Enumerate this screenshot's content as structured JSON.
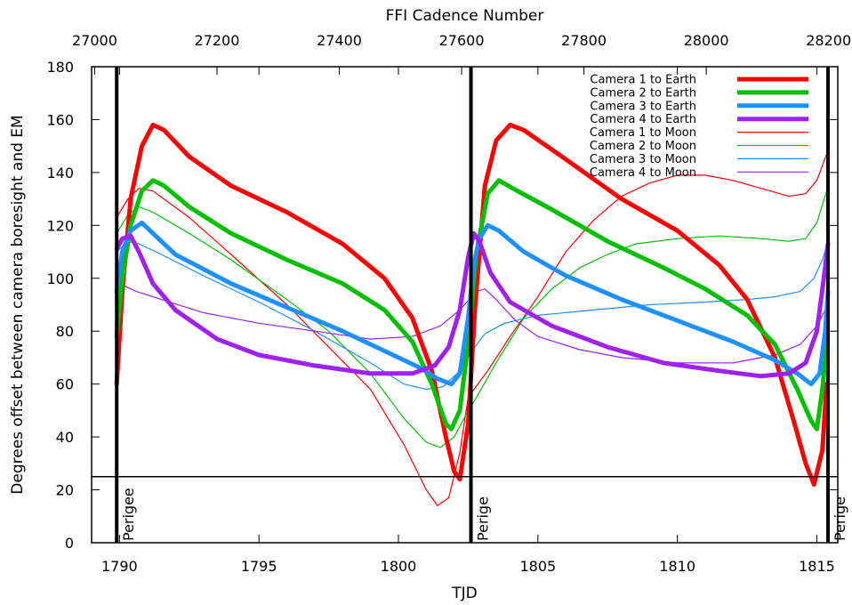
{
  "chart_data": {
    "type": "line",
    "xlabel": "TJD",
    "ylabel": "Degrees offset between camera boresight and EM",
    "x2label": "FFI Cadence Number",
    "xlim": [
      1789,
      1815.75
    ],
    "ylim": [
      0,
      180
    ],
    "x2lim": [
      26995,
      28215
    ],
    "x_ticks": [
      1790,
      1795,
      1800,
      1805,
      1810,
      1815
    ],
    "y_ticks": [
      0,
      20,
      40,
      60,
      80,
      100,
      120,
      140,
      160,
      180
    ],
    "x2_ticks": [
      27000,
      27200,
      27400,
      27600,
      27800,
      28000,
      28200
    ],
    "grid": false,
    "legend_position": "top-right",
    "horizontal_lines": [
      {
        "y": 25
      }
    ],
    "vertical_markers": [
      {
        "x": 1789.9,
        "label": "Perigee"
      },
      {
        "x": 1802.6,
        "label": "Perige"
      },
      {
        "x": 1815.4,
        "label": "Perige"
      }
    ],
    "series": [
      {
        "name": "Camera 1 to Earth",
        "color": "#ff0000",
        "weight": "thick",
        "points": [
          [
            1789.9,
            60
          ],
          [
            1790.1,
            95
          ],
          [
            1790.4,
            130
          ],
          [
            1790.8,
            150
          ],
          [
            1791.2,
            158
          ],
          [
            1791.6,
            156
          ],
          [
            1792.5,
            146
          ],
          [
            1794,
            135
          ],
          [
            1796,
            125
          ],
          [
            1798,
            113
          ],
          [
            1799.5,
            100
          ],
          [
            1800.5,
            85
          ],
          [
            1801.2,
            65
          ],
          [
            1801.7,
            40
          ],
          [
            1802.0,
            27
          ],
          [
            1802.2,
            24
          ],
          [
            1802.5,
            45
          ],
          [
            1802.75,
            90
          ],
          [
            1803.1,
            135
          ],
          [
            1803.5,
            152
          ],
          [
            1804.0,
            158
          ],
          [
            1804.5,
            156
          ],
          [
            1806,
            145
          ],
          [
            1808,
            130
          ],
          [
            1810,
            118
          ],
          [
            1811.5,
            105
          ],
          [
            1812.5,
            92
          ],
          [
            1813.5,
            70
          ],
          [
            1814.2,
            45
          ],
          [
            1814.6,
            30
          ],
          [
            1814.9,
            22
          ],
          [
            1815.2,
            35
          ],
          [
            1815.35,
            60
          ]
        ]
      },
      {
        "name": "Camera 2 to Earth",
        "color": "#00c000",
        "weight": "thick",
        "points": [
          [
            1789.9,
            78
          ],
          [
            1790.1,
            100
          ],
          [
            1790.4,
            120
          ],
          [
            1790.8,
            133
          ],
          [
            1791.2,
            137
          ],
          [
            1791.6,
            135
          ],
          [
            1792.5,
            127
          ],
          [
            1794,
            117
          ],
          [
            1796,
            107
          ],
          [
            1798,
            98
          ],
          [
            1799.5,
            88
          ],
          [
            1800.5,
            76
          ],
          [
            1801.2,
            60
          ],
          [
            1801.7,
            45
          ],
          [
            1801.9,
            43
          ],
          [
            1802.2,
            50
          ],
          [
            1802.5,
            75
          ],
          [
            1802.8,
            110
          ],
          [
            1803.2,
            132
          ],
          [
            1803.6,
            137
          ],
          [
            1804.1,
            134
          ],
          [
            1805.5,
            126
          ],
          [
            1807.5,
            114
          ],
          [
            1809.5,
            104
          ],
          [
            1811,
            96
          ],
          [
            1812.5,
            86
          ],
          [
            1813.5,
            75
          ],
          [
            1814.3,
            58
          ],
          [
            1814.8,
            46
          ],
          [
            1815.0,
            43
          ],
          [
            1815.2,
            58
          ],
          [
            1815.35,
            75
          ]
        ]
      },
      {
        "name": "Camera 3 to Earth",
        "color": "#1e90ff",
        "weight": "thick",
        "points": [
          [
            1789.9,
            95
          ],
          [
            1790.1,
            110
          ],
          [
            1790.4,
            118
          ],
          [
            1790.8,
            121
          ],
          [
            1791.2,
            117
          ],
          [
            1792,
            109
          ],
          [
            1794,
            98
          ],
          [
            1796,
            89
          ],
          [
            1798,
            80
          ],
          [
            1800,
            70
          ],
          [
            1800.8,
            66
          ],
          [
            1801.4,
            62
          ],
          [
            1801.9,
            60
          ],
          [
            1802.2,
            64
          ],
          [
            1802.5,
            85
          ],
          [
            1802.7,
            105
          ],
          [
            1802.9,
            115
          ],
          [
            1803.2,
            120
          ],
          [
            1803.6,
            118
          ],
          [
            1804.5,
            110
          ],
          [
            1806,
            101
          ],
          [
            1808,
            92
          ],
          [
            1810,
            84
          ],
          [
            1812,
            76
          ],
          [
            1813.5,
            69
          ],
          [
            1814.3,
            64
          ],
          [
            1814.8,
            60
          ],
          [
            1815.1,
            64
          ],
          [
            1815.3,
            80
          ],
          [
            1815.4,
            95
          ]
        ]
      },
      {
        "name": "Camera 4 to Earth",
        "color": "#a020f0",
        "weight": "thick",
        "points": [
          [
            1789.9,
            111
          ],
          [
            1790.1,
            115
          ],
          [
            1790.4,
            116
          ],
          [
            1790.7,
            110
          ],
          [
            1791.2,
            98
          ],
          [
            1792,
            88
          ],
          [
            1793.5,
            77
          ],
          [
            1795,
            71
          ],
          [
            1797,
            67
          ],
          [
            1799,
            64
          ],
          [
            1800.5,
            64
          ],
          [
            1801.3,
            67
          ],
          [
            1801.8,
            74
          ],
          [
            1802.2,
            88
          ],
          [
            1802.5,
            108
          ],
          [
            1802.7,
            117
          ],
          [
            1802.9,
            114
          ],
          [
            1803.3,
            102
          ],
          [
            1804,
            91
          ],
          [
            1805.5,
            82
          ],
          [
            1807.5,
            74
          ],
          [
            1809.5,
            68
          ],
          [
            1811.5,
            65
          ],
          [
            1813,
            63
          ],
          [
            1814,
            64
          ],
          [
            1814.6,
            68
          ],
          [
            1815.0,
            80
          ],
          [
            1815.25,
            100
          ],
          [
            1815.4,
            113
          ]
        ]
      },
      {
        "name": "Camera 1 to Moon",
        "color": "#ff0000",
        "weight": "thin",
        "points": [
          [
            1789.9,
            123
          ],
          [
            1790.3,
            130
          ],
          [
            1790.7,
            134
          ],
          [
            1791.2,
            133
          ],
          [
            1792.5,
            123
          ],
          [
            1794,
            109
          ],
          [
            1796,
            90
          ],
          [
            1797.5,
            74
          ],
          [
            1799,
            58
          ],
          [
            1800.2,
            37
          ],
          [
            1801,
            20
          ],
          [
            1801.4,
            14
          ],
          [
            1801.8,
            17
          ],
          [
            1802.2,
            34
          ],
          [
            1802.5,
            55
          ],
          [
            1803.2,
            65
          ],
          [
            1804,
            78
          ],
          [
            1805,
            93
          ],
          [
            1806,
            110
          ],
          [
            1807,
            122
          ],
          [
            1808,
            131
          ],
          [
            1809,
            136
          ],
          [
            1810,
            139
          ],
          [
            1811,
            139
          ],
          [
            1812,
            137
          ],
          [
            1813,
            134
          ],
          [
            1814,
            131
          ],
          [
            1814.6,
            132
          ],
          [
            1815.0,
            137
          ],
          [
            1815.35,
            147
          ]
        ]
      },
      {
        "name": "Camera 2 to Moon",
        "color": "#00c000",
        "weight": "thin",
        "points": [
          [
            1789.9,
            117
          ],
          [
            1790.3,
            124
          ],
          [
            1790.7,
            127
          ],
          [
            1791.2,
            125
          ],
          [
            1792.5,
            117
          ],
          [
            1794,
            107
          ],
          [
            1796,
            92
          ],
          [
            1797.5,
            80
          ],
          [
            1799,
            64
          ],
          [
            1800.2,
            47
          ],
          [
            1801,
            38
          ],
          [
            1801.5,
            36
          ],
          [
            1802,
            40
          ],
          [
            1802.4,
            48
          ],
          [
            1802.8,
            55
          ],
          [
            1803.5,
            68
          ],
          [
            1804.5,
            85
          ],
          [
            1805.5,
            96
          ],
          [
            1806.5,
            104
          ],
          [
            1807.5,
            109
          ],
          [
            1808.5,
            113
          ],
          [
            1810,
            115
          ],
          [
            1811.5,
            116
          ],
          [
            1813,
            115
          ],
          [
            1814,
            114
          ],
          [
            1814.6,
            115
          ],
          [
            1815.0,
            121
          ],
          [
            1815.35,
            133
          ]
        ]
      },
      {
        "name": "Camera 3 to Moon",
        "color": "#1e90ff",
        "weight": "thin",
        "points": [
          [
            1789.9,
            110
          ],
          [
            1790.3,
            114
          ],
          [
            1790.7,
            113
          ],
          [
            1791.5,
            109
          ],
          [
            1793,
            101
          ],
          [
            1795,
            91
          ],
          [
            1797,
            80
          ],
          [
            1799,
            68
          ],
          [
            1800.2,
            60
          ],
          [
            1801,
            58
          ],
          [
            1801.6,
            59
          ],
          [
            1802.1,
            64
          ],
          [
            1802.6,
            72
          ],
          [
            1803.1,
            79
          ],
          [
            1803.8,
            83
          ],
          [
            1805,
            86
          ],
          [
            1807,
            88
          ],
          [
            1809,
            90
          ],
          [
            1811,
            91
          ],
          [
            1812.5,
            92
          ],
          [
            1813.5,
            93
          ],
          [
            1814.4,
            95
          ],
          [
            1814.9,
            100
          ],
          [
            1815.2,
            107
          ],
          [
            1815.35,
            112
          ]
        ]
      },
      {
        "name": "Camera 4 to Moon",
        "color": "#a020f0",
        "weight": "thin",
        "points": [
          [
            1789.9,
            95
          ],
          [
            1790.2,
            97
          ],
          [
            1790.6,
            95
          ],
          [
            1791.5,
            92
          ],
          [
            1793,
            87
          ],
          [
            1795,
            83
          ],
          [
            1797,
            80
          ],
          [
            1799,
            77
          ],
          [
            1800.5,
            78
          ],
          [
            1801.5,
            82
          ],
          [
            1802.2,
            88
          ],
          [
            1802.8,
            95
          ],
          [
            1803.1,
            96
          ],
          [
            1803.5,
            92
          ],
          [
            1804.2,
            84
          ],
          [
            1805,
            78
          ],
          [
            1806.5,
            73
          ],
          [
            1808,
            70
          ],
          [
            1810,
            68
          ],
          [
            1812,
            68
          ],
          [
            1813.5,
            71
          ],
          [
            1814.4,
            75
          ],
          [
            1815.0,
            82
          ],
          [
            1815.35,
            89
          ]
        ]
      }
    ]
  }
}
